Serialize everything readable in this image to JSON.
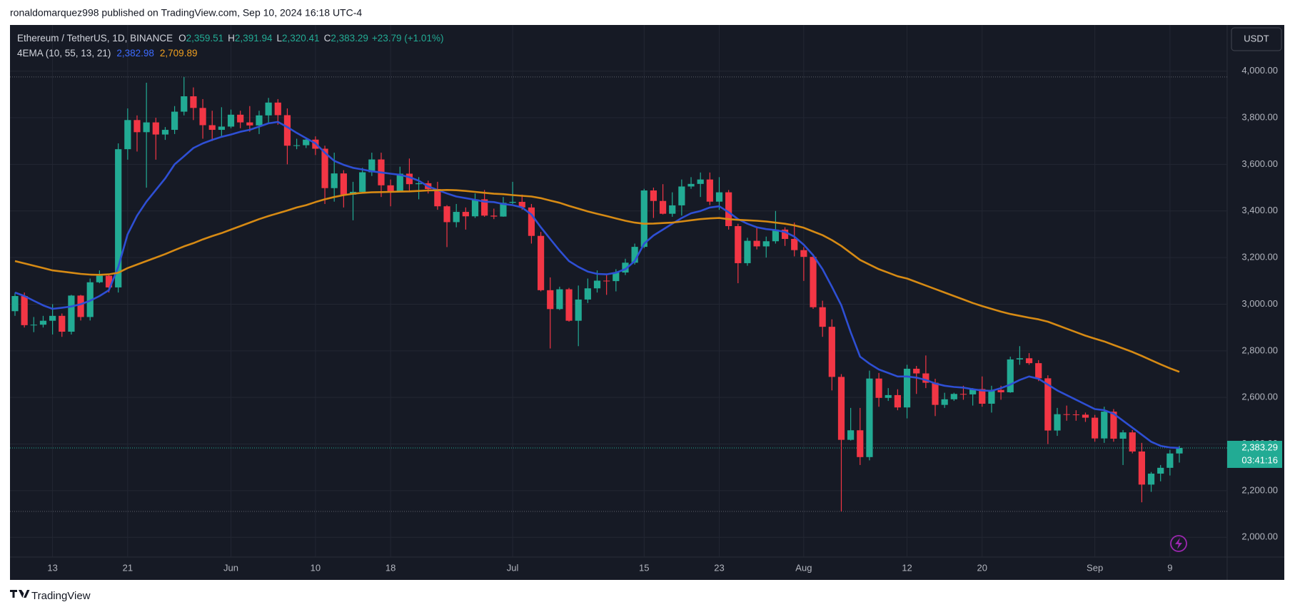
{
  "header": {
    "attribution": "ronaldomarquez998 published on TradingView.com, Sep 10, 2024 16:18 UTC-4"
  },
  "legend": {
    "symbol": "Ethereum / TetherUS, 1D, BINANCE",
    "fields": [
      {
        "key": "O",
        "value": "2,359.51"
      },
      {
        "key": "H",
        "value": "2,391.94"
      },
      {
        "key": "L",
        "value": "2,320.41"
      },
      {
        "key": "C",
        "value": "2,383.29"
      }
    ],
    "change": "+23.79 (+1.01%)",
    "indicator": "4EMA (10, 55, 13, 21)"
  },
  "footer": {
    "brand": "TradingView"
  },
  "chart_data": {
    "type": "candlestick",
    "categories": [
      null,
      null,
      null,
      null,
      "13",
      null,
      null,
      null,
      null,
      null,
      null,
      null,
      "21",
      null,
      null,
      null,
      null,
      null,
      null,
      null,
      null,
      null,
      null,
      "Jun",
      null,
      null,
      null,
      null,
      null,
      null,
      null,
      null,
      "10",
      null,
      null,
      null,
      null,
      null,
      null,
      null,
      "18",
      null,
      null,
      null,
      null,
      null,
      null,
      null,
      null,
      null,
      null,
      null,
      null,
      "Jul",
      null,
      null,
      null,
      null,
      null,
      null,
      null,
      null,
      null,
      null,
      null,
      null,
      null,
      "15",
      null,
      null,
      null,
      null,
      null,
      null,
      null,
      "23",
      null,
      null,
      null,
      null,
      null,
      null,
      null,
      null,
      "Aug",
      null,
      null,
      null,
      null,
      null,
      null,
      null,
      null,
      null,
      null,
      "12",
      null,
      null,
      null,
      null,
      null,
      null,
      null,
      "20",
      null,
      null,
      null,
      null,
      null,
      null,
      null,
      null,
      null,
      null,
      null,
      "Sep",
      null,
      null,
      null,
      null,
      null,
      null,
      null,
      "9",
      null
    ],
    "open": [
      2970,
      3035,
      2910,
      2912,
      2929,
      2950,
      2882,
      3037,
      2945,
      3094,
      3122,
      3072,
      3665,
      3790,
      3738,
      3780,
      3728,
      3748,
      3826,
      3892,
      3842,
      3768,
      3748,
      3762,
      3813,
      3780,
      3767,
      3810,
      3865,
      3811,
      3680,
      3682,
      3706,
      3667,
      3498,
      3561,
      3470,
      3482,
      3566,
      3621,
      3510,
      3485,
      3560,
      3515,
      3519,
      3494,
      3420,
      3352,
      3396,
      3377,
      3450,
      3380,
      3376,
      3435,
      3439,
      3415,
      3293,
      3060,
      2979,
      3064,
      2929,
      3020,
      3068,
      3101,
      3099,
      3136,
      3178,
      3246,
      3488,
      3443,
      3388,
      3424,
      3505,
      3516,
      3535,
      3440,
      3480,
      3335,
      3176,
      3272,
      3248,
      3270,
      3320,
      3280,
      3232,
      3203,
      2987,
      2903,
      2688,
      2418,
      2459,
      2344,
      2681,
      2598,
      2610,
      2557,
      2723,
      2703,
      2663,
      2568,
      2592,
      2615,
      2613,
      2636,
      2573,
      2632,
      2622,
      2763,
      2768,
      2747,
      2682,
      2458,
      2528,
      2527,
      2526,
      2513,
      2424,
      2539,
      2423,
      2450,
      2368,
      2226,
      2273,
      2298,
      2359.51
    ],
    "high": [
      3050,
      3050,
      2945,
      2950,
      3000,
      2960,
      3040,
      3040,
      3110,
      3145,
      3130,
      3690,
      3840,
      3810,
      3950,
      3800,
      3760,
      3850,
      3975,
      3930,
      3880,
      3830,
      3845,
      3835,
      3830,
      3850,
      3830,
      3885,
      3880,
      3840,
      3710,
      3715,
      3720,
      3680,
      3650,
      3575,
      3525,
      3585,
      3650,
      3650,
      3535,
      3590,
      3625,
      3545,
      3530,
      3525,
      3425,
      3430,
      3415,
      3475,
      3490,
      3410,
      3460,
      3525,
      3470,
      3430,
      3310,
      3115,
      3075,
      3070,
      3080,
      3110,
      3145,
      3125,
      3150,
      3195,
      3260,
      3495,
      3500,
      3515,
      3480,
      3535,
      3545,
      3565,
      3565,
      3545,
      3490,
      3345,
      3285,
      3330,
      3290,
      3400,
      3330,
      3350,
      3245,
      3215,
      3015,
      2935,
      2700,
      2555,
      2555,
      2715,
      2705,
      2640,
      2635,
      2740,
      2735,
      2780,
      2680,
      2620,
      2620,
      2650,
      2640,
      2690,
      2650,
      2650,
      2775,
      2820,
      2790,
      2760,
      2695,
      2555,
      2565,
      2545,
      2535,
      2525,
      2560,
      2550,
      2460,
      2460,
      2405,
      2280,
      2310,
      2375,
      2391.94
    ],
    "low": [
      2950,
      2900,
      2880,
      2900,
      2870,
      2860,
      2870,
      2930,
      2930,
      3090,
      3050,
      3050,
      3620,
      3655,
      3500,
      3620,
      3705,
      3730,
      3810,
      3790,
      3710,
      3700,
      3720,
      3755,
      3755,
      3740,
      3730,
      3775,
      3770,
      3600,
      3665,
      3670,
      3640,
      3430,
      3440,
      3415,
      3360,
      3475,
      3550,
      3460,
      3420,
      3485,
      3480,
      3450,
      3475,
      3405,
      3245,
      3330,
      3320,
      3370,
      3375,
      3365,
      3375,
      3430,
      3405,
      3260,
      3055,
      2810,
      2975,
      2925,
      2820,
      3005,
      3050,
      3040,
      3055,
      3125,
      3170,
      3240,
      3370,
      3385,
      3375,
      3380,
      3495,
      3460,
      3425,
      3405,
      3320,
      3090,
      3165,
      3235,
      3200,
      3260,
      3250,
      3205,
      3100,
      2980,
      2860,
      2630,
      2111,
      2415,
      2310,
      2330,
      2560,
      2585,
      2545,
      2510,
      2615,
      2640,
      2520,
      2555,
      2585,
      2590,
      2565,
      2560,
      2535,
      2590,
      2620,
      2740,
      2740,
      2670,
      2400,
      2435,
      2500,
      2500,
      2495,
      2410,
      2405,
      2410,
      2310,
      2360,
      2150,
      2195,
      2240,
      2265,
      2320.41
    ],
    "close": [
      3035,
      2910,
      2912,
      2929,
      2950,
      2882,
      3037,
      2945,
      3094,
      3122,
      3072,
      3665,
      3790,
      3738,
      3780,
      3728,
      3748,
      3826,
      3892,
      3842,
      3768,
      3748,
      3762,
      3813,
      3780,
      3767,
      3810,
      3865,
      3811,
      3680,
      3682,
      3706,
      3667,
      3498,
      3561,
      3470,
      3482,
      3566,
      3621,
      3510,
      3485,
      3560,
      3515,
      3519,
      3494,
      3420,
      3352,
      3396,
      3377,
      3450,
      3380,
      3376,
      3435,
      3439,
      3415,
      3293,
      3060,
      2979,
      3064,
      2929,
      3020,
      3068,
      3101,
      3099,
      3136,
      3178,
      3246,
      3488,
      3443,
      3388,
      3424,
      3505,
      3516,
      3535,
      3440,
      3480,
      3335,
      3176,
      3272,
      3248,
      3270,
      3320,
      3280,
      3232,
      3203,
      2987,
      2903,
      2688,
      2418,
      2459,
      2344,
      2681,
      2598,
      2610,
      2557,
      2723,
      2703,
      2663,
      2568,
      2592,
      2615,
      2613,
      2636,
      2573,
      2632,
      2622,
      2763,
      2768,
      2747,
      2682,
      2458,
      2528,
      2527,
      2526,
      2513,
      2424,
      2539,
      2423,
      2450,
      2368,
      2226,
      2273,
      2298,
      2359.51,
      2383.29
    ],
    "up_color": "#22ab94",
    "down_color": "#f23645",
    "overlays": [
      {
        "color": "#2e4fd4",
        "last_label": "2,382.98",
        "values": [
          3050,
          3035,
          3015,
          2995,
          2980,
          2985,
          2990,
          3000,
          3015,
          3035,
          3060,
          3160,
          3300,
          3380,
          3440,
          3490,
          3540,
          3600,
          3635,
          3670,
          3690,
          3705,
          3718,
          3728,
          3740,
          3748,
          3762,
          3776,
          3782,
          3760,
          3735,
          3712,
          3690,
          3650,
          3615,
          3598,
          3585,
          3578,
          3570,
          3565,
          3560,
          3555,
          3545,
          3530,
          3505,
          3490,
          3475,
          3462,
          3455,
          3448,
          3440,
          3438,
          3430,
          3425,
          3415,
          3385,
          3330,
          3280,
          3230,
          3185,
          3160,
          3140,
          3130,
          3128,
          3135,
          3150,
          3185,
          3260,
          3295,
          3320,
          3345,
          3370,
          3390,
          3400,
          3415,
          3420,
          3395,
          3365,
          3345,
          3330,
          3322,
          3318,
          3310,
          3290,
          3255,
          3210,
          3150,
          3075,
          2995,
          2880,
          2775,
          2745,
          2720,
          2705,
          2690,
          2690,
          2685,
          2675,
          2660,
          2650,
          2645,
          2642,
          2635,
          2630,
          2628,
          2640,
          2655,
          2675,
          2690,
          2680,
          2655,
          2630,
          2610,
          2590,
          2570,
          2550,
          2545,
          2530,
          2500,
          2470,
          2440,
          2410,
          2392,
          2385,
          2382.98
        ]
      },
      {
        "color": "#d68a14",
        "last_label": "2,709.89",
        "values": [
          3185,
          3175,
          3165,
          3155,
          3145,
          3140,
          3135,
          3130,
          3127,
          3126,
          3128,
          3135,
          3155,
          3170,
          3185,
          3200,
          3215,
          3232,
          3248,
          3262,
          3278,
          3292,
          3305,
          3320,
          3335,
          3350,
          3365,
          3378,
          3390,
          3402,
          3415,
          3425,
          3438,
          3450,
          3460,
          3468,
          3474,
          3478,
          3480,
          3481,
          3482,
          3483,
          3484,
          3486,
          3488,
          3489,
          3490,
          3489,
          3486,
          3482,
          3478,
          3474,
          3472,
          3468,
          3465,
          3462,
          3455,
          3445,
          3435,
          3422,
          3410,
          3398,
          3388,
          3378,
          3368,
          3358,
          3350,
          3345,
          3346,
          3348,
          3350,
          3355,
          3360,
          3365,
          3368,
          3370,
          3365,
          3362,
          3360,
          3358,
          3355,
          3350,
          3345,
          3338,
          3328,
          3312,
          3296,
          3275,
          3250,
          3220,
          3190,
          3170,
          3150,
          3135,
          3120,
          3110,
          3095,
          3080,
          3065,
          3050,
          3035,
          3020,
          3005,
          2992,
          2980,
          2968,
          2958,
          2950,
          2942,
          2935,
          2925,
          2910,
          2895,
          2880,
          2865,
          2852,
          2840,
          2825,
          2810,
          2795,
          2778,
          2760,
          2742,
          2725,
          2709.89
        ]
      }
    ],
    "ylim": [
      1915,
      4198
    ],
    "yticks": [
      {
        "value": 2000,
        "label": "2,000.00"
      },
      {
        "value": 2200,
        "label": "2,200.00"
      },
      {
        "value": 2400,
        "label": "2,400.00"
      },
      {
        "value": 2600,
        "label": "2,600.00"
      },
      {
        "value": 2800,
        "label": "2,800.00"
      },
      {
        "value": 3000,
        "label": "3,000.00"
      },
      {
        "value": 3200,
        "label": "3,200.00"
      },
      {
        "value": 3400,
        "label": "3,400.00"
      },
      {
        "value": 3600,
        "label": "3,600.00"
      },
      {
        "value": 3800,
        "label": "3,800.00"
      },
      {
        "value": 4000,
        "label": "4,000.00"
      }
    ],
    "grid": true,
    "currency": "USDT",
    "last_price_label": "2,383.29",
    "countdown": "03:41:16"
  }
}
